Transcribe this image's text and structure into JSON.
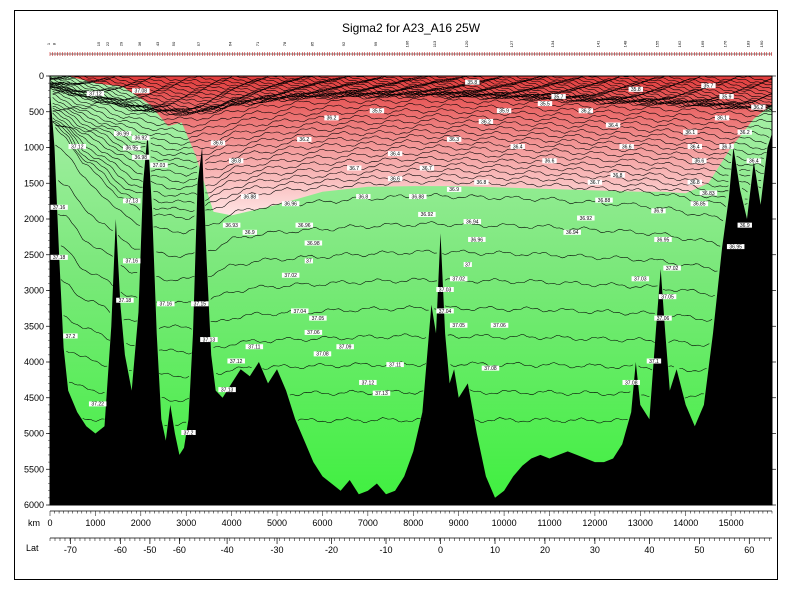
{
  "chart_data": {
    "type": "heatmap",
    "title": "Sigma2 for A23_A16 25W",
    "x_axis_label": "km",
    "x2_axis_label": "Lat",
    "xlim": [
      0,
      15900
    ],
    "ylim": [
      0,
      6000
    ],
    "y_inverted": true,
    "x_ticks": [
      0,
      1000,
      2000,
      3000,
      4000,
      5000,
      6000,
      7000,
      8000,
      9000,
      10000,
      11000,
      12000,
      13000,
      14000,
      15000
    ],
    "y_ticks": [
      0,
      500,
      1000,
      1500,
      2000,
      2500,
      3000,
      3500,
      4000,
      4500,
      5000,
      5500,
      6000
    ],
    "lat_ticks": [
      {
        "km": 450,
        "label": "-70"
      },
      {
        "km": 1550,
        "label": "-60"
      },
      {
        "km": 2200,
        "label": "-50"
      },
      {
        "km": 2850,
        "label": "-60"
      },
      {
        "km": 3900,
        "label": "-40"
      },
      {
        "km": 5000,
        "label": "-30"
      },
      {
        "km": 6200,
        "label": "-20"
      },
      {
        "km": 7400,
        "label": "-10"
      },
      {
        "km": 8600,
        "label": "0"
      },
      {
        "km": 9800,
        "label": "10"
      },
      {
        "km": 10900,
        "label": "20"
      },
      {
        "km": 12000,
        "label": "30"
      },
      {
        "km": 13200,
        "label": "40"
      },
      {
        "km": 14300,
        "label": "50"
      },
      {
        "km": 15400,
        "label": "60"
      }
    ],
    "colormap": {
      "low_density_color": "#e23c3c",
      "mid_light_red": "#ffe4e4",
      "mid_light_green": "#aef0ae",
      "high_density_color": "#3ff03f",
      "bathymetry_color": "#000000",
      "contour_color": "#000000"
    },
    "boundaries_m": [
      [
        0,
        700,
        520,
        160,
        120
      ],
      [
        400,
        900,
        640,
        240,
        170
      ],
      [
        700,
        1250,
        780,
        300,
        230
      ],
      [
        1200,
        1520,
        930,
        360,
        290
      ],
      [
        1500,
        1740,
        1050,
        420,
        340
      ],
      [
        1800,
        1880,
        1150,
        460,
        380
      ],
      [
        2200,
        1980,
        1250,
        500,
        420
      ],
      [
        2600,
        2030,
        1300,
        520,
        440
      ],
      [
        3000,
        2040,
        1320,
        540,
        460
      ],
      [
        3300,
        2000,
        1300,
        520,
        440
      ],
      [
        3700,
        1900,
        1260,
        480,
        400
      ],
      [
        4000,
        1780,
        1180,
        420,
        340
      ],
      [
        4500,
        1700,
        1120,
        380,
        300
      ],
      [
        5000,
        1660,
        1080,
        340,
        270
      ],
      [
        5500,
        1630,
        1040,
        310,
        240
      ],
      [
        6000,
        1610,
        1020,
        300,
        230
      ],
      [
        6500,
        1580,
        1000,
        290,
        220
      ],
      [
        7000,
        1560,
        990,
        290,
        220
      ],
      [
        7500,
        1540,
        980,
        290,
        220
      ],
      [
        8000,
        1530,
        960,
        280,
        210
      ],
      [
        8500,
        1520,
        960,
        280,
        200
      ],
      [
        9000,
        1530,
        970,
        290,
        220
      ],
      [
        9500,
        1540,
        990,
        300,
        230
      ],
      [
        10000,
        1550,
        1000,
        310,
        240
      ],
      [
        10500,
        1560,
        1000,
        320,
        250
      ],
      [
        11000,
        1570,
        1010,
        330,
        260
      ],
      [
        11500,
        1600,
        1030,
        350,
        270
      ],
      [
        12000,
        1620,
        1050,
        370,
        290
      ],
      [
        12500,
        1640,
        1060,
        380,
        300
      ],
      [
        13000,
        1660,
        1080,
        390,
        310
      ],
      [
        13500,
        1700,
        1110,
        400,
        320
      ],
      [
        14000,
        1760,
        1150,
        410,
        330
      ],
      [
        14500,
        1820,
        1200,
        430,
        350
      ],
      [
        15000,
        1880,
        1250,
        450,
        370
      ],
      [
        15500,
        1950,
        1300,
        470,
        390
      ],
      [
        15900,
        2000,
        1340,
        480,
        400
      ]
    ],
    "red_green_boundary_m": [
      [
        0,
        0
      ],
      [
        400,
        0
      ],
      [
        1000,
        100
      ],
      [
        1600,
        150
      ],
      [
        2200,
        400
      ],
      [
        2600,
        700
      ],
      [
        2900,
        650
      ],
      [
        3200,
        1100
      ],
      [
        3600,
        1900
      ],
      [
        4000,
        1950
      ],
      [
        5000,
        1800
      ],
      [
        6000,
        1620
      ],
      [
        7000,
        1550
      ],
      [
        8000,
        1540
      ],
      [
        9000,
        1540
      ],
      [
        10000,
        1560
      ],
      [
        11000,
        1580
      ],
      [
        12000,
        1600
      ],
      [
        13000,
        1620
      ],
      [
        13500,
        1620
      ],
      [
        14000,
        1640
      ],
      [
        14500,
        1500
      ],
      [
        15000,
        1000
      ],
      [
        15500,
        600
      ],
      [
        15900,
        400
      ]
    ],
    "bathymetry_m": [
      [
        0,
        200
      ],
      [
        100,
        1000
      ],
      [
        200,
        2500
      ],
      [
        300,
        3800
      ],
      [
        400,
        4400
      ],
      [
        600,
        4700
      ],
      [
        800,
        4900
      ],
      [
        1000,
        5000
      ],
      [
        1200,
        4900
      ],
      [
        1350,
        3500
      ],
      [
        1450,
        2000
      ],
      [
        1550,
        3200
      ],
      [
        1650,
        3900
      ],
      [
        1800,
        4400
      ],
      [
        1950,
        3300
      ],
      [
        2050,
        1500
      ],
      [
        2150,
        800
      ],
      [
        2250,
        1900
      ],
      [
        2350,
        3600
      ],
      [
        2450,
        4800
      ],
      [
        2550,
        5100
      ],
      [
        2650,
        4600
      ],
      [
        2750,
        5000
      ],
      [
        2850,
        5300
      ],
      [
        2950,
        5200
      ],
      [
        3050,
        4800
      ],
      [
        3150,
        3600
      ],
      [
        3250,
        1500
      ],
      [
        3350,
        1000
      ],
      [
        3450,
        2600
      ],
      [
        3550,
        3900
      ],
      [
        3650,
        4400
      ],
      [
        3800,
        4500
      ],
      [
        4000,
        4300
      ],
      [
        4200,
        4100
      ],
      [
        4400,
        4200
      ],
      [
        4600,
        4000
      ],
      [
        4800,
        4300
      ],
      [
        5000,
        4100
      ],
      [
        5200,
        4400
      ],
      [
        5400,
        4800
      ],
      [
        5600,
        5100
      ],
      [
        5800,
        5400
      ],
      [
        6000,
        5600
      ],
      [
        6200,
        5700
      ],
      [
        6400,
        5800
      ],
      [
        6600,
        5650
      ],
      [
        6800,
        5850
      ],
      [
        7000,
        5800
      ],
      [
        7200,
        5700
      ],
      [
        7400,
        5850
      ],
      [
        7600,
        5800
      ],
      [
        7800,
        5600
      ],
      [
        8000,
        5250
      ],
      [
        8200,
        4700
      ],
      [
        8400,
        3200
      ],
      [
        8500,
        3600
      ],
      [
        8600,
        2200
      ],
      [
        8700,
        3600
      ],
      [
        8800,
        4300
      ],
      [
        8900,
        4100
      ],
      [
        9000,
        4500
      ],
      [
        9200,
        4300
      ],
      [
        9400,
        5000
      ],
      [
        9600,
        5600
      ],
      [
        9800,
        5900
      ],
      [
        10000,
        5800
      ],
      [
        10200,
        5600
      ],
      [
        10400,
        5450
      ],
      [
        10600,
        5350
      ],
      [
        10800,
        5300
      ],
      [
        11000,
        5350
      ],
      [
        11200,
        5300
      ],
      [
        11400,
        5250
      ],
      [
        11600,
        5300
      ],
      [
        11800,
        5350
      ],
      [
        12000,
        5400
      ],
      [
        12200,
        5400
      ],
      [
        12400,
        5350
      ],
      [
        12600,
        5150
      ],
      [
        12800,
        4700
      ],
      [
        12900,
        4000
      ],
      [
        13000,
        4600
      ],
      [
        13200,
        4800
      ],
      [
        13350,
        3500
      ],
      [
        13450,
        2700
      ],
      [
        13550,
        3600
      ],
      [
        13650,
        4400
      ],
      [
        13800,
        4100
      ],
      [
        14000,
        4600
      ],
      [
        14200,
        4900
      ],
      [
        14400,
        4600
      ],
      [
        14600,
        3600
      ],
      [
        14800,
        2400
      ],
      [
        14950,
        1700
      ],
      [
        15050,
        1000
      ],
      [
        15200,
        1600
      ],
      [
        15350,
        2000
      ],
      [
        15500,
        1200
      ],
      [
        15650,
        1800
      ],
      [
        15800,
        1000
      ],
      [
        15900,
        800
      ]
    ],
    "contour_labels": [
      {
        "x": 2000,
        "y": 220,
        "text": "37.08"
      },
      {
        "x": 1000,
        "y": 260,
        "text": "37.12"
      },
      {
        "x": 1600,
        "y": 820,
        "text": "36.99"
      },
      {
        "x": 2000,
        "y": 880,
        "text": "36.92"
      },
      {
        "x": 1800,
        "y": 1020,
        "text": "36.95"
      },
      {
        "x": 2000,
        "y": 1150,
        "text": "36.98"
      },
      {
        "x": 2400,
        "y": 1260,
        "text": "37.03"
      },
      {
        "x": 600,
        "y": 1000,
        "text": "37.12"
      },
      {
        "x": 200,
        "y": 1850,
        "text": "37.16"
      },
      {
        "x": 1800,
        "y": 1760,
        "text": "37.13"
      },
      {
        "x": 200,
        "y": 2550,
        "text": "37.18"
      },
      {
        "x": 1800,
        "y": 2600,
        "text": "37.16"
      },
      {
        "x": 1650,
        "y": 3150,
        "text": "37.18"
      },
      {
        "x": 2550,
        "y": 3200,
        "text": "37.16"
      },
      {
        "x": 450,
        "y": 3650,
        "text": "37.2"
      },
      {
        "x": 1050,
        "y": 4600,
        "text": "37.22"
      },
      {
        "x": 3050,
        "y": 5000,
        "text": "37.2"
      },
      {
        "x": 3500,
        "y": 3700,
        "text": "37.13"
      },
      {
        "x": 3300,
        "y": 3200,
        "text": "37.15"
      },
      {
        "x": 4100,
        "y": 4000,
        "text": "37.12"
      },
      {
        "x": 3900,
        "y": 4400,
        "text": "37.13"
      },
      {
        "x": 4500,
        "y": 3800,
        "text": "37.11"
      },
      {
        "x": 4000,
        "y": 2100,
        "text": "36.93"
      },
      {
        "x": 4400,
        "y": 2200,
        "text": "36.9"
      },
      {
        "x": 4400,
        "y": 1700,
        "text": "36.88"
      },
      {
        "x": 4100,
        "y": 1200,
        "text": "36.8"
      },
      {
        "x": 3700,
        "y": 950,
        "text": "36.6"
      },
      {
        "x": 5300,
        "y": 1800,
        "text": "36.96"
      },
      {
        "x": 5600,
        "y": 2100,
        "text": "36.96"
      },
      {
        "x": 5800,
        "y": 2350,
        "text": "36.98"
      },
      {
        "x": 5700,
        "y": 2600,
        "text": "37"
      },
      {
        "x": 5300,
        "y": 2800,
        "text": "37.02"
      },
      {
        "x": 5500,
        "y": 3300,
        "text": "37.04"
      },
      {
        "x": 5900,
        "y": 3400,
        "text": "37.05"
      },
      {
        "x": 5800,
        "y": 3600,
        "text": "37.06"
      },
      {
        "x": 6000,
        "y": 3900,
        "text": "37.08"
      },
      {
        "x": 6500,
        "y": 3800,
        "text": "37.09"
      },
      {
        "x": 7000,
        "y": 4300,
        "text": "37.12"
      },
      {
        "x": 7300,
        "y": 4450,
        "text": "37.13"
      },
      {
        "x": 7600,
        "y": 4050,
        "text": "37.11"
      },
      {
        "x": 5600,
        "y": 900,
        "text": "36.2"
      },
      {
        "x": 6700,
        "y": 1300,
        "text": "36.7"
      },
      {
        "x": 6900,
        "y": 1700,
        "text": "36.8"
      },
      {
        "x": 7600,
        "y": 1450,
        "text": "36.6"
      },
      {
        "x": 7600,
        "y": 1100,
        "text": "36.4"
      },
      {
        "x": 6200,
        "y": 600,
        "text": "36.2"
      },
      {
        "x": 7200,
        "y": 500,
        "text": "35.5"
      },
      {
        "x": 8100,
        "y": 1700,
        "text": "36.88"
      },
      {
        "x": 8900,
        "y": 1600,
        "text": "36.9"
      },
      {
        "x": 9500,
        "y": 1500,
        "text": "36.8"
      },
      {
        "x": 8300,
        "y": 1950,
        "text": "36.92"
      },
      {
        "x": 9300,
        "y": 2050,
        "text": "36.94"
      },
      {
        "x": 9400,
        "y": 2300,
        "text": "36.96"
      },
      {
        "x": 9200,
        "y": 2650,
        "text": "37"
      },
      {
        "x": 9000,
        "y": 2850,
        "text": "37.02"
      },
      {
        "x": 8700,
        "y": 3000,
        "text": "37.03"
      },
      {
        "x": 8700,
        "y": 3300,
        "text": "37.04"
      },
      {
        "x": 9000,
        "y": 3500,
        "text": "37.05"
      },
      {
        "x": 9900,
        "y": 3500,
        "text": "37.06"
      },
      {
        "x": 9700,
        "y": 4100,
        "text": "37.08"
      },
      {
        "x": 8300,
        "y": 1300,
        "text": "36.7"
      },
      {
        "x": 8900,
        "y": 900,
        "text": "36.3"
      },
      {
        "x": 9600,
        "y": 650,
        "text": "36.2"
      },
      {
        "x": 10000,
        "y": 500,
        "text": "35.9"
      },
      {
        "x": 10900,
        "y": 400,
        "text": "35.5"
      },
      {
        "x": 9300,
        "y": 100,
        "text": "35.8"
      },
      {
        "x": 10300,
        "y": 1000,
        "text": "36.4"
      },
      {
        "x": 11000,
        "y": 1200,
        "text": "36.6"
      },
      {
        "x": 12000,
        "y": 1500,
        "text": "36.7"
      },
      {
        "x": 11500,
        "y": 2200,
        "text": "36.94"
      },
      {
        "x": 11800,
        "y": 2000,
        "text": "36.92"
      },
      {
        "x": 12200,
        "y": 1750,
        "text": "36.88"
      },
      {
        "x": 12500,
        "y": 1400,
        "text": "36.8"
      },
      {
        "x": 12700,
        "y": 1000,
        "text": "36.6"
      },
      {
        "x": 12400,
        "y": 700,
        "text": "36.4"
      },
      {
        "x": 11800,
        "y": 500,
        "text": "36.2"
      },
      {
        "x": 11200,
        "y": 300,
        "text": "35.7"
      },
      {
        "x": 12900,
        "y": 200,
        "text": "35.8"
      },
      {
        "x": 13400,
        "y": 1900,
        "text": "36.9"
      },
      {
        "x": 13500,
        "y": 2300,
        "text": "36.95"
      },
      {
        "x": 13700,
        "y": 2700,
        "text": "37.02"
      },
      {
        "x": 13600,
        "y": 3100,
        "text": "37.05"
      },
      {
        "x": 13500,
        "y": 3400,
        "text": "37.06"
      },
      {
        "x": 13300,
        "y": 4000,
        "text": "37.1"
      },
      {
        "x": 12800,
        "y": 4300,
        "text": "37.08"
      },
      {
        "x": 13000,
        "y": 2850,
        "text": "37.03"
      },
      {
        "x": 14100,
        "y": 800,
        "text": "36.1"
      },
      {
        "x": 14200,
        "y": 1000,
        "text": "36.4"
      },
      {
        "x": 14300,
        "y": 1200,
        "text": "36.6"
      },
      {
        "x": 14200,
        "y": 1500,
        "text": "36.8"
      },
      {
        "x": 14300,
        "y": 1800,
        "text": "36.85"
      },
      {
        "x": 14500,
        "y": 1650,
        "text": "36.83"
      },
      {
        "x": 14800,
        "y": 600,
        "text": "36.1"
      },
      {
        "x": 14900,
        "y": 1000,
        "text": "36.3"
      },
      {
        "x": 15500,
        "y": 1200,
        "text": "36.4"
      },
      {
        "x": 15300,
        "y": 800,
        "text": "36.2"
      },
      {
        "x": 15600,
        "y": 450,
        "text": "36.2"
      },
      {
        "x": 14900,
        "y": 300,
        "text": "35.9"
      },
      {
        "x": 14500,
        "y": 150,
        "text": "35.7"
      },
      {
        "x": 15300,
        "y": 2100,
        "text": "36.9"
      },
      {
        "x": 15100,
        "y": 2400,
        "text": "36.95"
      }
    ],
    "stations_km": [
      0,
      120,
      1100,
      1300,
      1600,
      2000,
      2400,
      2750,
      3300,
      4000,
      4600,
      5200,
      5800,
      6500,
      7200,
      7900,
      8500,
      9200,
      10200,
      11100,
      12100,
      12700,
      13400,
      13900,
      14400,
      14900,
      15400,
      15700
    ]
  }
}
